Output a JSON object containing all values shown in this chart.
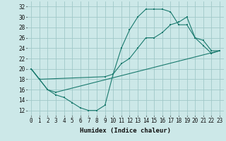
{
  "xlabel": "Humidex (Indice chaleur)",
  "background_color": "#cce8e8",
  "grid_color": "#a0c8c8",
  "line_color": "#1a7a6e",
  "xlim": [
    -0.5,
    23.5
  ],
  "ylim": [
    11,
    33
  ],
  "xticks": [
    0,
    1,
    2,
    3,
    4,
    5,
    6,
    7,
    8,
    9,
    10,
    11,
    12,
    13,
    14,
    15,
    16,
    17,
    18,
    19,
    20,
    21,
    22,
    23
  ],
  "yticks": [
    12,
    14,
    16,
    18,
    20,
    22,
    24,
    26,
    28,
    30,
    32
  ],
  "line1_x": [
    0,
    1,
    2,
    3,
    4,
    5,
    6,
    7,
    8,
    9,
    10,
    11,
    12,
    13,
    14,
    15,
    16,
    17,
    18,
    19,
    20,
    21,
    22,
    23
  ],
  "line1_y": [
    20,
    18,
    16,
    15,
    14.5,
    13.5,
    12.5,
    12,
    12,
    13,
    19,
    24,
    27.5,
    30,
    31.5,
    31.5,
    31.5,
    31,
    28.5,
    28.5,
    26,
    24.5,
    23,
    23.5
  ],
  "line2_x": [
    0,
    1,
    9,
    10,
    11,
    12,
    13,
    14,
    15,
    16,
    17,
    18,
    19,
    20,
    21,
    22,
    23
  ],
  "line2_y": [
    20,
    18,
    18.5,
    19,
    21,
    22,
    24,
    26,
    26,
    27,
    28.5,
    29,
    30,
    26,
    25.5,
    23.5,
    23.5
  ],
  "line3_x": [
    0,
    1,
    2,
    3,
    23
  ],
  "line3_y": [
    20,
    18,
    16,
    15.5,
    23.5
  ]
}
